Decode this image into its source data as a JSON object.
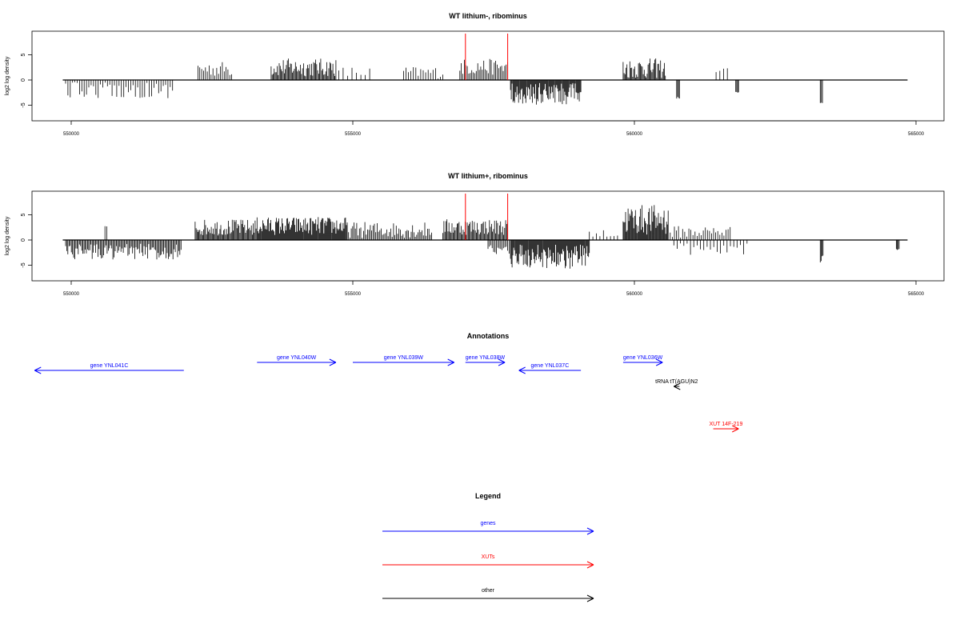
{
  "chart_data": [
    {
      "type": "bar",
      "title": "WT lithium-, ribominus",
      "ylabel": "log2 log density",
      "xlabel": "",
      "xlim": [
        549800,
        564900
      ],
      "ylim": [
        -8,
        9
      ],
      "yticks": [
        -5,
        0,
        5
      ],
      "xticks": [
        "550000",
        "555000",
        "560000",
        "565000"
      ],
      "grid": false,
      "series": [
        {
          "segments": [
            {
              "from": 549900,
              "to": 551800,
              "sign": -1,
              "mean": 2.0,
              "amp": 1.6,
              "density": 0.35
            },
            {
              "from": 552250,
              "to": 552850,
              "sign": 1,
              "mean": 2.2,
              "amp": 1.5,
              "density": 0.45
            },
            {
              "from": 553550,
              "to": 554700,
              "sign": 1,
              "mean": 2.5,
              "amp": 1.8,
              "density": 0.8
            },
            {
              "from": 554750,
              "to": 555300,
              "sign": 1,
              "mean": 1.5,
              "amp": 1.2,
              "density": 0.2
            },
            {
              "from": 555900,
              "to": 556600,
              "sign": 1,
              "mean": 1.5,
              "amp": 1.2,
              "density": 0.35
            },
            {
              "from": 556900,
              "to": 557750,
              "sign": 1,
              "mean": 2.6,
              "amp": 1.6,
              "density": 0.55
            },
            {
              "from": 557800,
              "to": 559050,
              "sign": -1,
              "mean": 2.8,
              "amp": 2.2,
              "density": 1.0
            },
            {
              "from": 559800,
              "to": 560550,
              "sign": 1,
              "mean": 2.3,
              "amp": 2.0,
              "density": 0.85
            },
            {
              "from": 560750,
              "to": 560800,
              "sign": -1,
              "mean": 3.5,
              "amp": 0.2,
              "density": 1.0
            },
            {
              "from": 561450,
              "to": 561650,
              "sign": 1,
              "mean": 2.0,
              "amp": 0.5,
              "density": 0.3
            },
            {
              "from": 561800,
              "to": 561850,
              "sign": -1,
              "mean": 2.4,
              "amp": 0.2,
              "density": 1.0
            },
            {
              "from": 563300,
              "to": 563340,
              "sign": -1,
              "mean": 4.4,
              "amp": 0.2,
              "density": 1.0
            }
          ]
        }
      ],
      "markers_x": [
        557000,
        557750
      ],
      "marker_color": "#ff0000"
    },
    {
      "type": "bar",
      "title": "WT lithium+, ribominus",
      "ylabel": "log2 log density",
      "xlabel": "",
      "xlim": [
        549800,
        564900
      ],
      "ylim": [
        -8,
        9
      ],
      "yticks": [
        -5,
        0,
        5
      ],
      "xticks": [
        "550000",
        "555000",
        "560000",
        "565000"
      ],
      "grid": false,
      "series": [
        {
          "segments": [
            {
              "from": 549900,
              "to": 551950,
              "sign": -1,
              "mean": 2.3,
              "amp": 1.6,
              "density": 0.7
            },
            {
              "from": 550600,
              "to": 550630,
              "sign": 1,
              "mean": 2.6,
              "amp": 0.2,
              "density": 1.0
            },
            {
              "from": 552200,
              "to": 553300,
              "sign": 1,
              "mean": 2.5,
              "amp": 1.6,
              "density": 0.85
            },
            {
              "from": 553300,
              "to": 554900,
              "sign": 1,
              "mean": 2.8,
              "amp": 1.8,
              "density": 1.0
            },
            {
              "from": 554900,
              "to": 556400,
              "sign": 1,
              "mean": 2.0,
              "amp": 1.6,
              "density": 0.6
            },
            {
              "from": 556600,
              "to": 557750,
              "sign": 1,
              "mean": 2.6,
              "amp": 1.6,
              "density": 0.8
            },
            {
              "from": 557800,
              "to": 559200,
              "sign": -1,
              "mean": 3.3,
              "amp": 2.4,
              "density": 1.0
            },
            {
              "from": 557400,
              "to": 557800,
              "sign": -1,
              "mean": 1.8,
              "amp": 1.0,
              "density": 0.6
            },
            {
              "from": 559200,
              "to": 559700,
              "sign": 1,
              "mean": 1.2,
              "amp": 0.8,
              "density": 0.25
            },
            {
              "from": 559800,
              "to": 560600,
              "sign": 1,
              "mean": 4.0,
              "amp": 3.0,
              "density": 1.0
            },
            {
              "from": 560600,
              "to": 561700,
              "sign": 1,
              "mean": 1.6,
              "amp": 1.2,
              "density": 0.4
            },
            {
              "from": 560700,
              "to": 562000,
              "sign": -1,
              "mean": 1.8,
              "amp": 1.2,
              "density": 0.25
            },
            {
              "from": 563300,
              "to": 563350,
              "sign": -1,
              "mean": 3.8,
              "amp": 0.8,
              "density": 1.0
            },
            {
              "from": 564650,
              "to": 564700,
              "sign": -1,
              "mean": 2.0,
              "amp": 0.5,
              "density": 1.0
            }
          ]
        }
      ],
      "markers_x": [
        557000,
        557750
      ],
      "marker_color": "#ff0000"
    }
  ],
  "annotations": {
    "title": "Annotations",
    "features": [
      {
        "label": "gene YNL041C",
        "from": 552000,
        "to": 549350,
        "color": "#0000ff",
        "row": 1
      },
      {
        "label": "gene YNL040W",
        "from": 553300,
        "to": 554700,
        "color": "#0000ff",
        "row": 0
      },
      {
        "label": "gene YNL039W",
        "from": 555000,
        "to": 556800,
        "color": "#0000ff",
        "row": 0
      },
      {
        "label": "gene YNL038W",
        "from": 557000,
        "to": 557700,
        "color": "#0000ff",
        "row": 0
      },
      {
        "label": "gene YNL037C",
        "from": 559050,
        "to": 557950,
        "color": "#0000ff",
        "row": 1
      },
      {
        "label": "gene YNL036W",
        "from": 559800,
        "to": 560500,
        "color": "#0000ff",
        "row": 0
      },
      {
        "label": "tRNA tT(AGU)N2",
        "from": 560800,
        "to": 560700,
        "color": "#000000",
        "row": 2
      },
      {
        "label": "XUT 14F-219",
        "from": 561400,
        "to": 561850,
        "color": "#ff0000",
        "row": 4
      }
    ]
  },
  "legend": {
    "title": "Legend",
    "items": [
      {
        "label": "genes",
        "color": "#0000ff"
      },
      {
        "label": "XUTs",
        "color": "#ff0000"
      },
      {
        "label": "other",
        "color": "#000000"
      }
    ]
  }
}
